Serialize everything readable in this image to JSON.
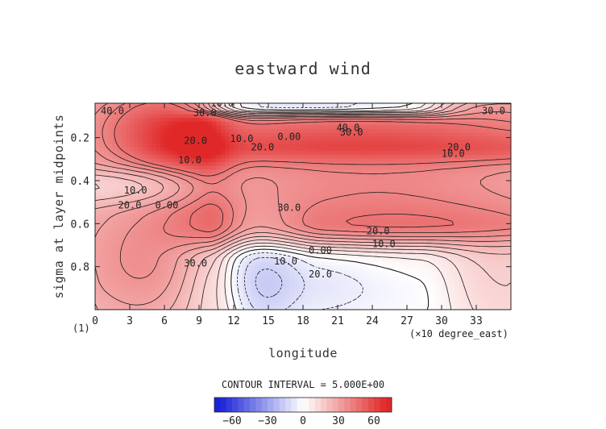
{
  "chart_data": {
    "type": "heatmap",
    "title": "eastward wind",
    "xlabel": "longitude",
    "ylabel": "sigma at layer midpoints",
    "x_units": "(×10 degree_east)",
    "panel_tag": "(1)",
    "xlim": [
      0,
      36
    ],
    "ylim": [
      1.0,
      0.04
    ],
    "x_ticks": [
      "0",
      "3",
      "6",
      "9",
      "12",
      "15",
      "18",
      "21",
      "24",
      "27",
      "30",
      "33"
    ],
    "y_ticks": [
      "0.2",
      "0.4",
      "0.6",
      "0.8"
    ],
    "contour_interval_text": "CONTOUR INTERVAL = 5.000E+00",
    "contour_labels": [
      {
        "text": "40.0",
        "x": 1.5,
        "y": 0.09
      },
      {
        "text": "10.0",
        "x": 11.0,
        "y": 0.055
      },
      {
        "text": "30.0",
        "x": 9.5,
        "y": 0.1
      },
      {
        "text": "30.0",
        "x": 34.5,
        "y": 0.09
      },
      {
        "text": "40.0",
        "x": 21.9,
        "y": 0.17
      },
      {
        "text": "30.0",
        "x": 22.2,
        "y": 0.19
      },
      {
        "text": "20.0",
        "x": 8.7,
        "y": 0.23
      },
      {
        "text": "10.0",
        "x": 8.2,
        "y": 0.32
      },
      {
        "text": "10.0",
        "x": 12.7,
        "y": 0.22
      },
      {
        "text": "20.0",
        "x": 14.5,
        "y": 0.26
      },
      {
        "text": "0.00",
        "x": 16.8,
        "y": 0.21
      },
      {
        "text": "20.0",
        "x": 31.5,
        "y": 0.26
      },
      {
        "text": "10.0",
        "x": 31.0,
        "y": 0.29
      },
      {
        "text": "10.0",
        "x": 3.5,
        "y": 0.46
      },
      {
        "text": "0.00",
        "x": 6.2,
        "y": 0.53
      },
      {
        "text": "20.0",
        "x": 3.0,
        "y": 0.53
      },
      {
        "text": "30.0",
        "x": 16.8,
        "y": 0.54
      },
      {
        "text": "20.0",
        "x": 24.5,
        "y": 0.65
      },
      {
        "text": "10.0",
        "x": 25.0,
        "y": 0.71
      },
      {
        "text": "0.00",
        "x": 19.5,
        "y": 0.74
      },
      {
        "text": "10.0",
        "x": 16.5,
        "y": 0.79
      },
      {
        "text": "20.0",
        "x": 19.5,
        "y": 0.85
      },
      {
        "text": "30.0",
        "x": 8.7,
        "y": 0.8
      }
    ],
    "colorbar": {
      "min": -75,
      "max": 75,
      "step": 5,
      "tick_labels": [
        "−60",
        "−30",
        "0",
        "30",
        "60"
      ],
      "tick_values": [
        -60,
        -30,
        0,
        30,
        60
      ]
    },
    "features": [
      {
        "value": 40,
        "x0": 0,
        "x1": 9,
        "y0": 0.05,
        "y1": 0.3,
        "tilt": 0,
        "ridge": 0.05
      },
      {
        "value": 45,
        "x0": 9.5,
        "x1": 36,
        "y0": 0.06,
        "y1": 0.23,
        "tilt": 0.07,
        "ridge": 0.06
      },
      {
        "value": -44,
        "x0": 11,
        "x1": 27,
        "y0": 0.04,
        "y1": 0.07,
        "tilt": 0,
        "ridge": 0.03
      },
      {
        "value": 38,
        "x0": 11.5,
        "x1": 36,
        "y0": 0.28,
        "y1": 0.6,
        "tilt": 0.18,
        "ridge": 0.04
      },
      {
        "value": 20,
        "x0": 20,
        "x1": 36,
        "y0": 0.62,
        "y1": 0.99,
        "tilt": -0.1,
        "ridge": 0.04
      },
      {
        "value": 38,
        "x0": 0,
        "x1": 9.5,
        "y0": 0.57,
        "y1": 0.99,
        "tilt": 0.1,
        "ridge": 0.05
      },
      {
        "value": -24,
        "x0": 11,
        "x1": 28,
        "y0": 0.77,
        "y1": 0.99,
        "tilt": 0,
        "ridge": 0.04
      }
    ]
  }
}
